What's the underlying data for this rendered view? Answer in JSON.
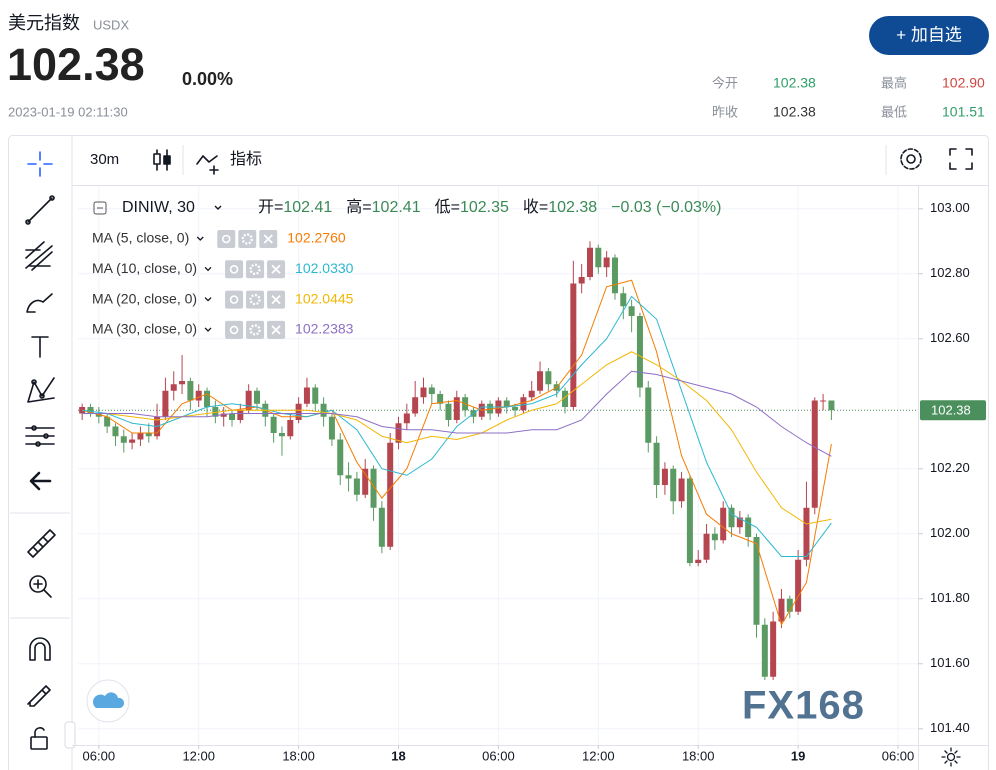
{
  "header": {
    "title": "美元指数",
    "code": "USDX",
    "price": "102.38",
    "change": "0.00%",
    "time": "2023-01-19 02:11:30",
    "button": "+ 加自选",
    "stats": [
      {
        "label": "今开",
        "value": "102.38",
        "color": "#2f9e6a"
      },
      {
        "label": "最高",
        "value": "102.90",
        "color": "#d0453f"
      },
      {
        "label": "昨收",
        "value": "102.38",
        "color": "#333333"
      },
      {
        "label": "最低",
        "value": "101.51",
        "color": "#2f9e6a"
      }
    ]
  },
  "toolbar": {
    "interval": "30m",
    "indicators": "指标"
  },
  "legend": {
    "symbol": "DINIW, 30",
    "items": [
      {
        "label": "开=",
        "value": "102.41"
      },
      {
        "label": "高=",
        "value": "102.41"
      },
      {
        "label": "低=",
        "value": "102.35"
      },
      {
        "label": "收=",
        "value": "102.38"
      }
    ],
    "change": "−0.03 (−0.03%)"
  },
  "watermark": "FX168",
  "chart_data": {
    "type": "candlestick",
    "up_color": "#b5454f",
    "down_color": "#5b9a62",
    "xlim": [
      -0.5,
      100.4
    ],
    "ylim": [
      101.35,
      103.07
    ],
    "xticks": [
      {
        "value": 2,
        "label": "06:00"
      },
      {
        "value": 14,
        "label": "12:00"
      },
      {
        "value": 26,
        "label": "18:00"
      },
      {
        "value": 38,
        "label": "18"
      },
      {
        "value": 50,
        "label": "06:00"
      },
      {
        "value": 62,
        "label": "12:00"
      },
      {
        "value": 74,
        "label": "18:00"
      },
      {
        "value": 86,
        "label": "19"
      },
      {
        "value": 98,
        "label": "06:00"
      }
    ],
    "yticks": [
      {
        "value": 101.4,
        "label": "101.40"
      },
      {
        "value": 101.6,
        "label": "101.60"
      },
      {
        "value": 101.8,
        "label": "101.80"
      },
      {
        "value": 102.0,
        "label": "102.00"
      },
      {
        "value": 102.2,
        "label": "102.20"
      },
      {
        "value": 102.6,
        "label": "102.60"
      },
      {
        "value": 102.8,
        "label": "102.80"
      },
      {
        "value": 103.0,
        "label": "103.00"
      }
    ],
    "grid": true,
    "last_price": {
      "value": 102.38,
      "label": "102.38",
      "color": "#4a8f5c"
    },
    "candles": [
      [
        102.37,
        102.4,
        102.35,
        102.39
      ],
      [
        102.39,
        102.4,
        102.36,
        102.37
      ],
      [
        102.37,
        102.39,
        102.34,
        102.36
      ],
      [
        102.36,
        102.37,
        102.31,
        102.33
      ],
      [
        102.33,
        102.34,
        102.27,
        102.3
      ],
      [
        102.3,
        102.32,
        102.25,
        102.28
      ],
      [
        102.28,
        102.31,
        102.26,
        102.29
      ],
      [
        102.29,
        102.33,
        102.27,
        102.31
      ],
      [
        102.31,
        102.34,
        102.28,
        102.3
      ],
      [
        102.3,
        102.4,
        102.29,
        102.36
      ],
      [
        102.36,
        102.48,
        102.35,
        102.44
      ],
      [
        102.44,
        102.5,
        102.41,
        102.46
      ],
      [
        102.46,
        102.55,
        102.43,
        102.47
      ],
      [
        102.47,
        102.48,
        102.38,
        102.41
      ],
      [
        102.41,
        102.46,
        102.39,
        102.44
      ],
      [
        102.44,
        102.45,
        102.36,
        102.39
      ],
      [
        102.39,
        102.41,
        102.34,
        102.36
      ],
      [
        102.36,
        102.39,
        102.33,
        102.37
      ],
      [
        102.37,
        102.38,
        102.33,
        102.35
      ],
      [
        102.35,
        102.4,
        102.34,
        102.38
      ],
      [
        102.38,
        102.46,
        102.37,
        102.44
      ],
      [
        102.44,
        102.45,
        102.38,
        102.4
      ],
      [
        102.4,
        102.41,
        102.33,
        102.36
      ],
      [
        102.36,
        102.37,
        102.28,
        102.31
      ],
      [
        102.31,
        102.33,
        102.24,
        102.3
      ],
      [
        102.3,
        102.37,
        102.29,
        102.35
      ],
      [
        102.35,
        102.42,
        102.34,
        102.4
      ],
      [
        102.4,
        102.48,
        102.39,
        102.45
      ],
      [
        102.45,
        102.46,
        102.38,
        102.4
      ],
      [
        102.4,
        102.42,
        102.33,
        102.36
      ],
      [
        102.36,
        102.37,
        102.27,
        102.29
      ],
      [
        102.29,
        102.31,
        102.15,
        102.18
      ],
      [
        102.18,
        102.22,
        102.13,
        102.17
      ],
      [
        102.17,
        102.19,
        102.1,
        102.12
      ],
      [
        102.12,
        102.23,
        102.11,
        102.2
      ],
      [
        102.2,
        102.21,
        102.04,
        102.08
      ],
      [
        102.08,
        102.1,
        101.94,
        101.96
      ],
      [
        101.96,
        102.31,
        101.95,
        102.28
      ],
      [
        102.28,
        102.36,
        102.26,
        102.34
      ],
      [
        102.34,
        102.4,
        102.32,
        102.37
      ],
      [
        102.37,
        102.47,
        102.36,
        102.42
      ],
      [
        102.42,
        102.48,
        102.4,
        102.45
      ],
      [
        102.45,
        102.46,
        102.4,
        102.43
      ],
      [
        102.43,
        102.44,
        102.38,
        102.4
      ],
      [
        102.4,
        102.41,
        102.33,
        102.35
      ],
      [
        102.35,
        102.44,
        102.34,
        102.42
      ],
      [
        102.42,
        102.43,
        102.36,
        102.38
      ],
      [
        102.38,
        102.39,
        102.34,
        102.36
      ],
      [
        102.36,
        102.41,
        102.35,
        102.4
      ],
      [
        102.4,
        102.41,
        102.35,
        102.37
      ],
      [
        102.37,
        102.42,
        102.36,
        102.41
      ],
      [
        102.41,
        102.42,
        102.37,
        102.39
      ],
      [
        102.39,
        102.4,
        102.36,
        102.38
      ],
      [
        102.38,
        102.43,
        102.37,
        102.42
      ],
      [
        102.42,
        102.47,
        102.41,
        102.44
      ],
      [
        102.44,
        102.53,
        102.43,
        102.5
      ],
      [
        102.5,
        102.51,
        102.44,
        102.46
      ],
      [
        102.46,
        102.47,
        102.42,
        102.44
      ],
      [
        102.44,
        102.45,
        102.37,
        102.39
      ],
      [
        102.39,
        102.84,
        102.38,
        102.77
      ],
      [
        102.77,
        102.83,
        102.74,
        102.79
      ],
      [
        102.79,
        102.9,
        102.78,
        102.88
      ],
      [
        102.88,
        102.89,
        102.8,
        102.82
      ],
      [
        102.82,
        102.87,
        102.79,
        102.85
      ],
      [
        102.85,
        102.86,
        102.72,
        102.74
      ],
      [
        102.74,
        102.76,
        102.66,
        102.7
      ],
      [
        102.7,
        102.72,
        102.62,
        102.67
      ],
      [
        102.67,
        102.68,
        102.42,
        102.45
      ],
      [
        102.45,
        102.47,
        102.25,
        102.28
      ],
      [
        102.28,
        102.3,
        102.11,
        102.15
      ],
      [
        102.15,
        102.22,
        102.12,
        102.2
      ],
      [
        102.2,
        102.21,
        102.06,
        102.1
      ],
      [
        102.1,
        102.19,
        102.08,
        102.17
      ],
      [
        102.17,
        102.18,
        101.9,
        101.91
      ],
      [
        101.91,
        101.95,
        101.9,
        101.92
      ],
      [
        101.92,
        102.03,
        101.91,
        102.0
      ],
      [
        102.0,
        102.02,
        101.95,
        101.98
      ],
      [
        101.98,
        102.1,
        101.97,
        102.08
      ],
      [
        102.08,
        102.09,
        101.99,
        102.02
      ],
      [
        102.02,
        102.07,
        102.0,
        102.05
      ],
      [
        102.05,
        102.06,
        101.96,
        101.99
      ],
      [
        101.99,
        102.0,
        101.68,
        101.72
      ],
      [
        101.72,
        101.74,
        101.55,
        101.56
      ],
      [
        101.56,
        101.76,
        101.55,
        101.73
      ],
      [
        101.73,
        101.83,
        101.71,
        101.8
      ],
      [
        101.8,
        101.81,
        101.74,
        101.76
      ],
      [
        101.76,
        101.95,
        101.75,
        101.92
      ],
      [
        101.92,
        102.16,
        101.9,
        102.08
      ],
      [
        102.08,
        102.42,
        102.06,
        102.41
      ],
      [
        102.41,
        102.43,
        102.38,
        102.41
      ],
      [
        102.41,
        102.41,
        102.35,
        102.38
      ]
    ],
    "ma_x": [
      0,
      3,
      6,
      9,
      12,
      15,
      18,
      21,
      24,
      27,
      30,
      33,
      36,
      39,
      42,
      45,
      48,
      51,
      54,
      57,
      60,
      63,
      66,
      69,
      72,
      75,
      78,
      81,
      84,
      87,
      90
    ],
    "series": [
      {
        "name": "MA (5, close, 0)",
        "color": "#f57c00",
        "value_text": "102.2760",
        "values": [
          102.38,
          102.36,
          102.31,
          102.31,
          102.4,
          102.43,
          102.38,
          102.39,
          102.36,
          102.36,
          102.38,
          102.22,
          102.11,
          102.2,
          102.4,
          102.41,
          102.38,
          102.39,
          102.41,
          102.45,
          102.55,
          102.76,
          102.78,
          102.56,
          102.24,
          102.06,
          102.0,
          101.97,
          101.72,
          101.85,
          102.276
        ]
      },
      {
        "name": "MA (10, close, 0)",
        "color": "#2bb8d0",
        "value_text": "102.0330",
        "values": [
          102.38,
          102.37,
          102.34,
          102.33,
          102.36,
          102.39,
          102.4,
          102.39,
          102.37,
          102.36,
          102.38,
          102.32,
          102.2,
          102.18,
          102.23,
          102.33,
          102.39,
          102.39,
          102.4,
          102.43,
          102.52,
          102.6,
          102.73,
          102.66,
          102.44,
          102.22,
          102.06,
          102.02,
          101.93,
          101.93,
          102.033
        ]
      },
      {
        "name": "MA (20, close, 0)",
        "color": "#f2b705",
        "value_text": "102.0445",
        "values": [
          102.37,
          102.37,
          102.36,
          102.35,
          102.36,
          102.37,
          102.38,
          102.38,
          102.38,
          102.38,
          102.37,
          102.35,
          102.3,
          102.28,
          102.3,
          102.29,
          102.31,
          102.35,
          102.38,
          102.4,
          102.46,
          102.52,
          102.56,
          102.52,
          102.47,
          102.41,
          102.32,
          102.19,
          102.08,
          102.03,
          102.0445
        ]
      },
      {
        "name": "MA (30, close, 0)",
        "color": "#8e6fc6",
        "value_text": "102.2383",
        "values": [
          102.37,
          102.37,
          102.37,
          102.36,
          102.36,
          102.36,
          102.37,
          102.37,
          102.37,
          102.37,
          102.37,
          102.36,
          102.33,
          102.32,
          102.32,
          102.31,
          102.31,
          102.31,
          102.32,
          102.32,
          102.35,
          102.43,
          102.5,
          102.49,
          102.47,
          102.45,
          102.43,
          102.39,
          102.33,
          102.28,
          102.2383
        ]
      }
    ]
  }
}
